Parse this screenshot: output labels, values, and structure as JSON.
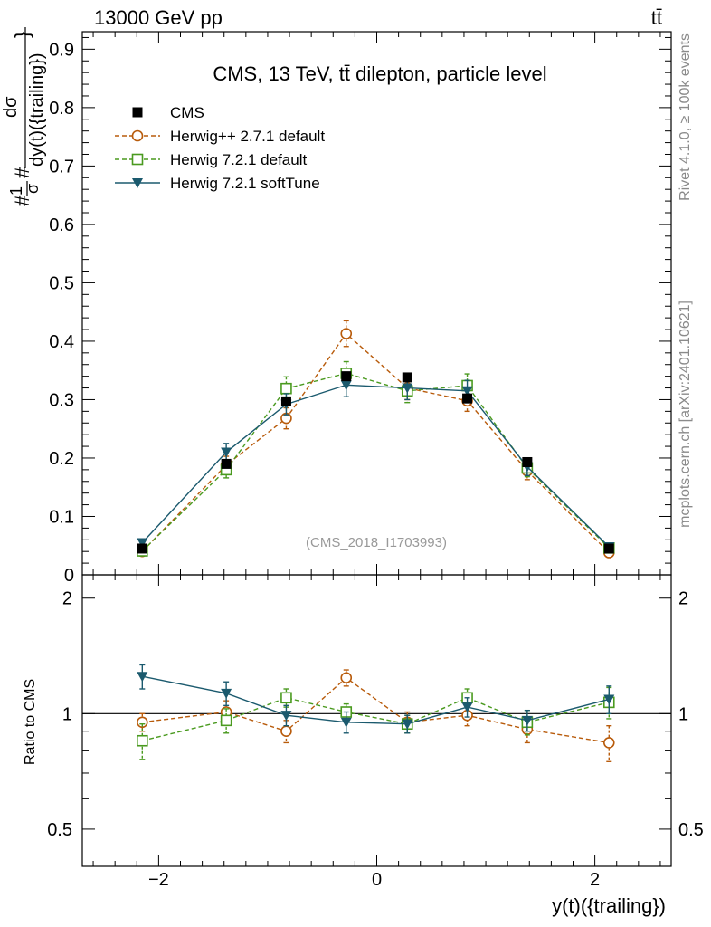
{
  "header": {
    "beam_label": "13000 GeV pp",
    "process_label": "tt̄"
  },
  "side_labels": {
    "rivet": "Rivet 4.1.0, ≥ 100k events",
    "mcplots": "mcplots.cern.ch [arXiv:2401.10621]"
  },
  "chart_data": {
    "type": "line",
    "title": "CMS, 13 TeV, tt̄ dilepton, particle level",
    "watermark": "(CMS_2018_I1703993)",
    "xlabel": "y(t)({trailing})",
    "ylabel": "#frac{1}{σ}#frac{dσ}{dy(t)({trailing})}",
    "ylabel_parts": {
      "prefix": "#",
      "num1": "1",
      "den1": "σ",
      "mid": "#",
      "num2": "dσ",
      "den2": "dy(t)({trailing})",
      "suffix": "}"
    },
    "ratio_ylabel": "Ratio to CMS",
    "xlim": [
      -2.7,
      2.7
    ],
    "ylim": [
      0,
      0.93
    ],
    "ratio_ylim": [
      0.4,
      2.3
    ],
    "x_ticks": [
      {
        "value": -2,
        "label": "−2"
      },
      {
        "value": 0,
        "label": "0"
      },
      {
        "value": 2,
        "label": "2"
      }
    ],
    "y_ticks": [
      {
        "value": 0,
        "label": "0"
      },
      {
        "value": 0.1,
        "label": "0.1"
      },
      {
        "value": 0.2,
        "label": "0.2"
      },
      {
        "value": 0.3,
        "label": "0.3"
      },
      {
        "value": 0.4,
        "label": "0.4"
      },
      {
        "value": 0.5,
        "label": "0.5"
      },
      {
        "value": 0.6,
        "label": "0.6"
      },
      {
        "value": 0.7,
        "label": "0.7"
      },
      {
        "value": 0.8,
        "label": "0.8"
      },
      {
        "value": 0.9,
        "label": "0.9"
      }
    ],
    "ratio_ticks": [
      {
        "value": 0.5,
        "label": "0.5"
      },
      {
        "value": 1,
        "label": "1"
      },
      {
        "value": 2,
        "label": "2"
      }
    ],
    "x": [
      -2.15,
      -1.38,
      -0.83,
      -0.28,
      0.28,
      0.83,
      1.38,
      2.13
    ],
    "series": [
      {
        "name": "CMS",
        "color": "#000000",
        "marker": "square-filled",
        "line": "none",
        "values": [
          0.045,
          0.19,
          0.297,
          0.34,
          0.338,
          0.302,
          0.193,
          0.045
        ],
        "errors": [
          0.003,
          0.006,
          0.007,
          0.007,
          0.007,
          0.007,
          0.006,
          0.003
        ]
      },
      {
        "name": "Herwig++ 2.7.1 default",
        "color": "#b85b0b",
        "marker": "circle-open",
        "line": "dashed",
        "values": [
          0.04,
          0.188,
          0.268,
          0.413,
          0.32,
          0.298,
          0.178,
          0.038
        ],
        "errors": [
          0.004,
          0.015,
          0.018,
          0.022,
          0.02,
          0.018,
          0.015,
          0.004
        ],
        "ratio": [
          0.95,
          1.01,
          0.9,
          1.24,
          0.95,
          0.99,
          0.91,
          0.84
        ],
        "ratio_errors": [
          0.05,
          0.07,
          0.06,
          0.06,
          0.06,
          0.06,
          0.07,
          0.09
        ]
      },
      {
        "name": "Herwig 7.2.1 default",
        "color": "#4a9a1f",
        "marker": "square-open",
        "line": "dashed",
        "values": [
          0.041,
          0.18,
          0.319,
          0.345,
          0.315,
          0.324,
          0.183,
          0.046
        ],
        "errors": [
          0.004,
          0.014,
          0.02,
          0.02,
          0.02,
          0.02,
          0.015,
          0.005
        ],
        "ratio": [
          0.85,
          0.96,
          1.1,
          1.01,
          0.94,
          1.1,
          0.95,
          1.07
        ],
        "ratio_errors": [
          0.09,
          0.07,
          0.06,
          0.05,
          0.05,
          0.06,
          0.07,
          0.1
        ]
      },
      {
        "name": "Herwig 7.2.1 softTune",
        "color": "#1b5a6e",
        "marker": "triangle-down-filled",
        "line": "solid",
        "values": [
          0.055,
          0.21,
          0.292,
          0.325,
          0.32,
          0.315,
          0.185,
          0.048
        ],
        "errors": [
          0.005,
          0.015,
          0.018,
          0.02,
          0.02,
          0.018,
          0.015,
          0.005
        ],
        "ratio": [
          1.25,
          1.13,
          0.99,
          0.95,
          0.94,
          1.04,
          0.96,
          1.09
        ],
        "ratio_errors": [
          0.09,
          0.08,
          0.06,
          0.06,
          0.05,
          0.06,
          0.06,
          0.09
        ]
      }
    ]
  }
}
